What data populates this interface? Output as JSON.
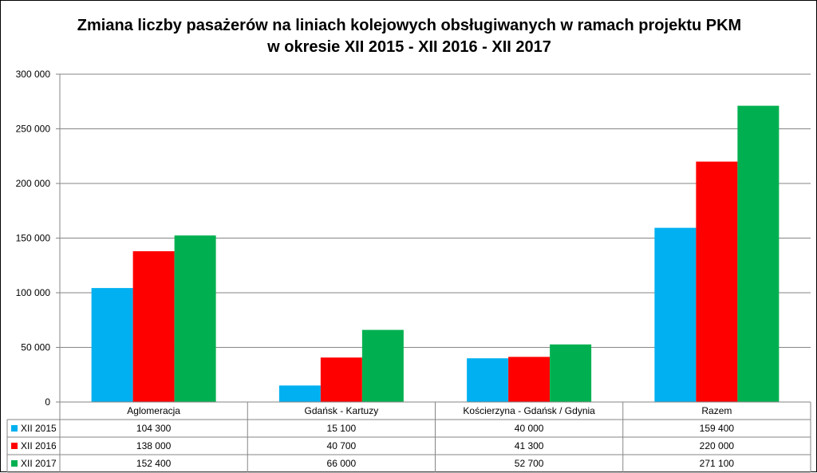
{
  "chart_data": {
    "type": "bar",
    "title_line1": "Zmiana liczby pasażerów na liniach kolejowych obsługiwanych w ramach projektu PKM",
    "title_line2": "w okresie  XII 2015 - XII 2016 - XII 2017",
    "categories": [
      "Aglomeracja",
      "Gdańsk - Kartuzy",
      "Kościerzyna - Gdańsk / Gdynia",
      "Razem"
    ],
    "series": [
      {
        "name": "XII 2015",
        "color": "#00b0f0",
        "values": [
          104300,
          15100,
          40000,
          159400
        ],
        "labels": [
          "104 300",
          "15 100",
          "40 000",
          "159 400"
        ]
      },
      {
        "name": "XII 2016",
        "color": "#ff0000",
        "values": [
          138000,
          40700,
          41300,
          220000
        ],
        "labels": [
          "138 000",
          "40 700",
          "41 300",
          "220 000"
        ]
      },
      {
        "name": "XII 2017",
        "color": "#00b050",
        "values": [
          152400,
          66000,
          52700,
          271100
        ],
        "labels": [
          "152 400",
          "66 000",
          "52 700",
          "271 100"
        ]
      }
    ],
    "ylim": [
      0,
      300000
    ],
    "yticks": [
      0,
      50000,
      100000,
      150000,
      200000,
      250000,
      300000
    ],
    "ytick_labels": [
      "0",
      "50 000",
      "100 000",
      "150 000",
      "200 000",
      "250 000",
      "300 000"
    ],
    "grid": true,
    "legend": "data-table"
  }
}
